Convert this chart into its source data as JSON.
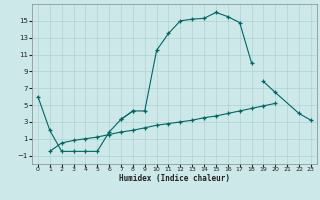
{
  "xlabel": "Humidex (Indice chaleur)",
  "bg_color": "#cce8e8",
  "grid_color": "#aacccc",
  "line_color": "#006666",
  "xlim": [
    -0.5,
    23.5
  ],
  "ylim": [
    -2.0,
    17.0
  ],
  "yticks": [
    -1,
    1,
    3,
    5,
    7,
    9,
    11,
    13,
    15
  ],
  "xticks": [
    0,
    1,
    2,
    3,
    4,
    5,
    6,
    7,
    8,
    9,
    10,
    11,
    12,
    13,
    14,
    15,
    16,
    17,
    18,
    19,
    20,
    21,
    22,
    23
  ],
  "curve1": {
    "x": [
      0,
      1,
      2,
      3,
      4,
      5,
      6,
      7,
      8,
      9,
      10,
      11,
      12,
      13,
      14,
      15,
      16,
      17,
      18
    ],
    "y": [
      6.0,
      2.0,
      -0.5,
      -0.5,
      -0.5,
      -0.5,
      1.8,
      3.3,
      4.3,
      4.3,
      11.5,
      13.5,
      15.0,
      15.2,
      15.3,
      16.0,
      15.5,
      14.8,
      10.0
    ]
  },
  "curve2": {
    "segments": [
      {
        "x": [
          7,
          8
        ],
        "y": [
          3.3,
          4.3
        ]
      },
      {
        "x": [
          19,
          20,
          22,
          23
        ],
        "y": [
          7.8,
          6.5,
          4.0,
          3.2
        ]
      }
    ]
  },
  "curve3": {
    "x": [
      1,
      2,
      3,
      4,
      5,
      6,
      7,
      8,
      9,
      10,
      11,
      12,
      13,
      14,
      15,
      16,
      17,
      18,
      19,
      20
    ],
    "y": [
      -0.5,
      0.5,
      0.8,
      1.0,
      1.2,
      1.5,
      1.8,
      2.0,
      2.3,
      2.6,
      2.8,
      3.0,
      3.2,
      3.5,
      3.7,
      4.0,
      4.3,
      4.6,
      4.9,
      5.2
    ]
  }
}
